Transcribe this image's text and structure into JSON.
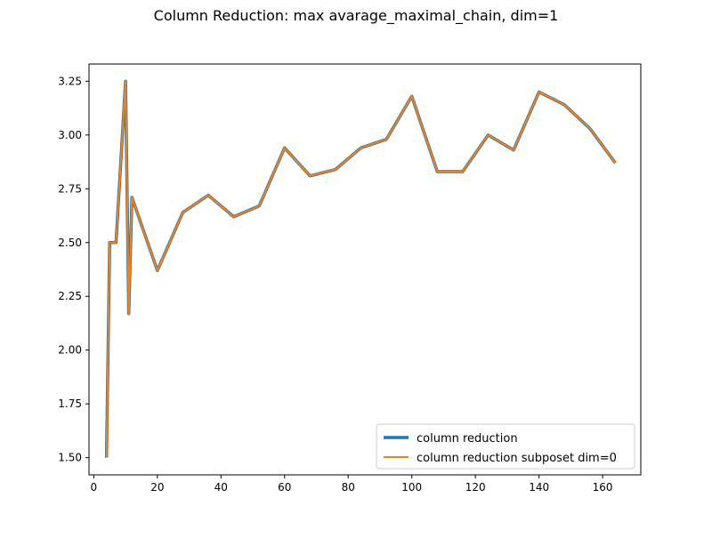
{
  "chart_data": {
    "type": "line",
    "title": "Column Reduction: max avarage_maximal_chain, dim=1",
    "xlabel": "",
    "ylabel": "",
    "xlim": [
      -1.5,
      172
    ],
    "ylim": [
      1.42,
      3.33
    ],
    "xticks": [
      0,
      20,
      40,
      60,
      80,
      100,
      120,
      140,
      160
    ],
    "yticks": [
      1.5,
      1.75,
      2.0,
      2.25,
      2.5,
      2.75,
      3.0,
      3.25
    ],
    "grid": false,
    "legend_position": "lower-right",
    "x": [
      4,
      5,
      6,
      7,
      8,
      9,
      10,
      11,
      12,
      20,
      28,
      36,
      44,
      52,
      60,
      68,
      76,
      84,
      92,
      100,
      108,
      116,
      124,
      132,
      140,
      148,
      156,
      164
    ],
    "series": [
      {
        "name": "column reduction",
        "color": "#1f77b4",
        "values": [
          1.5,
          2.5,
          2.5,
          2.5,
          2.75,
          3.0,
          3.25,
          2.17,
          2.71,
          2.37,
          2.64,
          2.72,
          2.62,
          2.67,
          2.94,
          2.81,
          2.84,
          2.94,
          2.98,
          3.18,
          2.83,
          2.83,
          3.0,
          2.93,
          3.2,
          3.14,
          3.03,
          2.87
        ]
      },
      {
        "name": "column reduction subposet dim=0",
        "color": "#ff7f0e",
        "values": [
          1.5,
          2.5,
          2.5,
          2.5,
          2.75,
          3.0,
          3.25,
          2.17,
          2.71,
          2.37,
          2.64,
          2.72,
          2.62,
          2.67,
          2.94,
          2.81,
          2.84,
          2.94,
          2.98,
          3.18,
          2.83,
          2.83,
          3.0,
          2.93,
          3.2,
          3.14,
          3.03,
          2.87
        ]
      }
    ]
  }
}
